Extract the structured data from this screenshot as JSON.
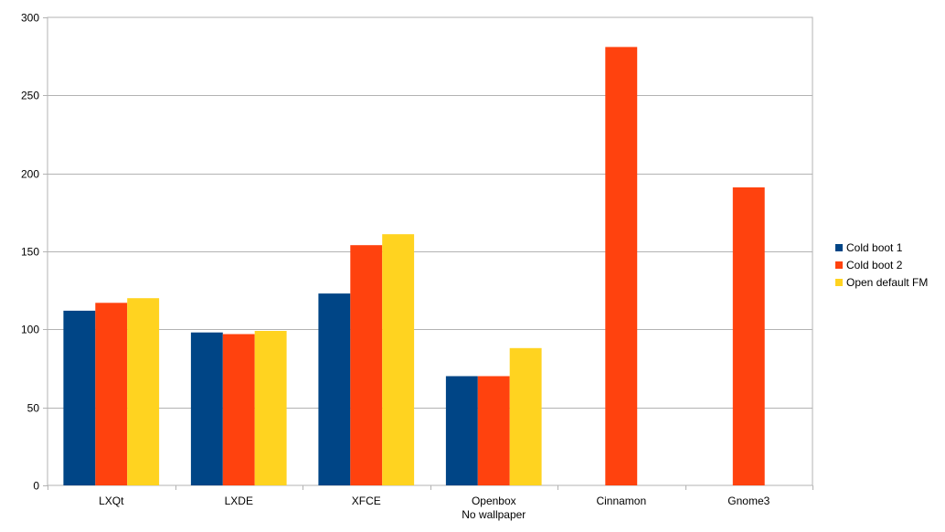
{
  "chart_data": {
    "type": "bar",
    "title": "",
    "xlabel": "",
    "ylabel": "",
    "categories": [
      [
        "LXQt"
      ],
      [
        "LXDE"
      ],
      [
        "XFCE"
      ],
      [
        "Openbox",
        "No wallpaper"
      ],
      [
        "Cinnamon"
      ],
      [
        "Gnome3"
      ]
    ],
    "series": [
      {
        "name": "Cold boot 1",
        "color": "#004586",
        "values": [
          112,
          98,
          123,
          70,
          null,
          null
        ]
      },
      {
        "name": "Cold boot 2",
        "color": "#ff420e",
        "values": [
          117,
          97,
          154,
          70,
          281,
          191
        ]
      },
      {
        "name": "Open default FM",
        "color": "#ffd320",
        "values": [
          120,
          99,
          161,
          88,
          null,
          null
        ]
      }
    ],
    "ylim": [
      0,
      300
    ],
    "yticks": [
      0,
      50,
      100,
      150,
      200,
      250,
      300
    ],
    "grid": true,
    "legend_position": "right"
  }
}
